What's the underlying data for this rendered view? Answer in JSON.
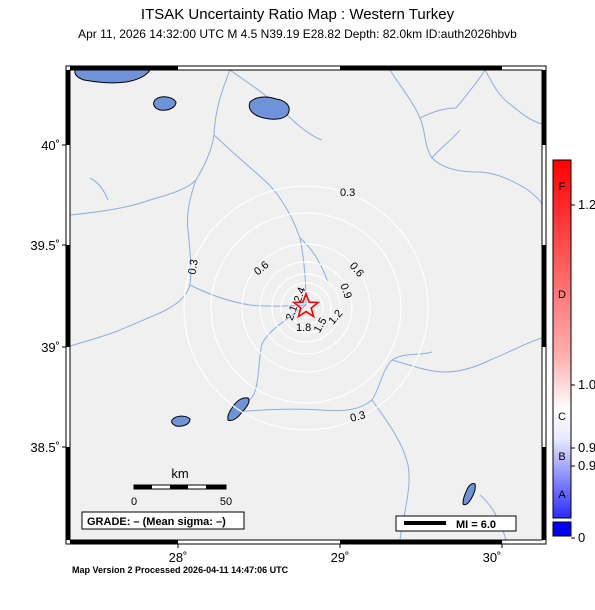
{
  "header": {
    "title": "ITSAK Uncertainty Ratio Map : Western Turkey",
    "subtitle": "Apr 11, 2026 14:32:00 UTC   M 4.5   N39.19 E28.82   Depth: 82.0km   ID:auth2026hbvb"
  },
  "axes": {
    "lat_labels": [
      "40˚",
      "39.5˚",
      "39˚",
      "38.5˚"
    ],
    "lon_labels": [
      "28˚",
      "29˚",
      "30˚"
    ]
  },
  "contours": {
    "labels": [
      "0.3",
      "0.3",
      "0.3",
      "0.6",
      "0.6",
      "0.9",
      "1.2",
      "1.5",
      "1.8",
      "2.1",
      "2.4"
    ]
  },
  "scalebar": {
    "title": "km",
    "start": "0",
    "end": "50"
  },
  "grade_box": {
    "text": "GRADE: – (Mean sigma: –)"
  },
  "mi_box": {
    "text": "MI = 6.0"
  },
  "colorbar": {
    "letters": [
      "F",
      "D",
      "C",
      "B",
      "A"
    ],
    "values": [
      "1.2",
      "1.0",
      "0.9",
      "0.9",
      "0"
    ],
    "colors": {
      "top": "#ff0000",
      "mid": "#ffffff",
      "bottom": "#0000ff"
    }
  },
  "epicenter": {
    "symbol": "star-icon",
    "color": "#ff0000"
  },
  "colors": {
    "land": "#f0f0f0",
    "water": "#6f93d8",
    "rivers": "#8aaee0",
    "contour": "#ffffff"
  },
  "footer": {
    "text": "Map Version 2 Processed 2026-04-11 14:47:06 UTC"
  }
}
